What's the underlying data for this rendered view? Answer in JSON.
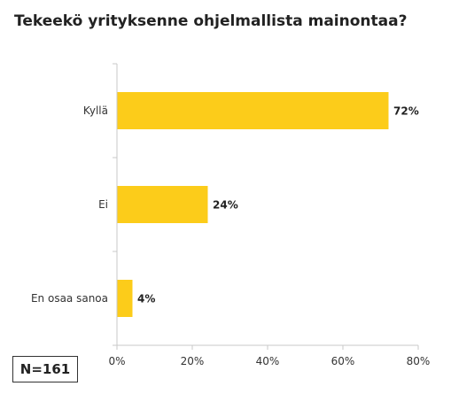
{
  "chart_data": {
    "type": "bar",
    "orientation": "horizontal",
    "title": "Tekeekö yrityksenne ohjelmallista mainontaa?",
    "categories": [
      "Kyllä",
      "Ei",
      "En osaa sanoa"
    ],
    "values": [
      72,
      24,
      4
    ],
    "value_labels": [
      "72%",
      "24%",
      "4%"
    ],
    "xlim": [
      0,
      80
    ],
    "xticks": [
      0,
      20,
      40,
      60,
      80
    ],
    "xtick_labels": [
      "0%",
      "20%",
      "40%",
      "60%",
      "80%"
    ],
    "xlabel": "",
    "ylabel": "",
    "grid": false,
    "legend": "none",
    "bar_color": "#FCCC1A",
    "sample_size_label": "N=161"
  }
}
